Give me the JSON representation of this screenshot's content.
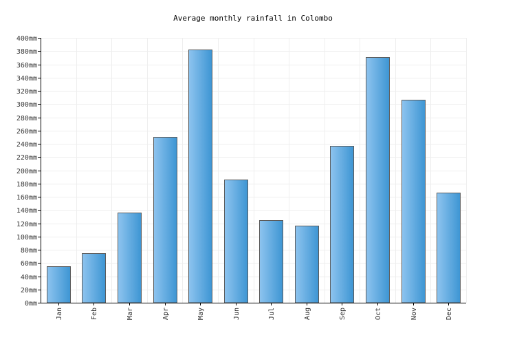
{
  "chart_data": {
    "type": "bar",
    "title": "Average monthly rainfall in Colombo",
    "xlabel": "",
    "ylabel": "",
    "categories": [
      "Jan",
      "Feb",
      "Mar",
      "Apr",
      "May",
      "Jun",
      "Jul",
      "Aug",
      "Sep",
      "Oct",
      "Nov",
      "Dec"
    ],
    "series": [
      {
        "values": [
          55,
          75,
          136,
          250,
          382,
          186,
          125,
          116,
          237,
          371,
          307,
          166
        ]
      }
    ],
    "ylim": [
      0,
      400
    ],
    "ytick_step": 20,
    "y_unit_suffix": "mm",
    "grid": true,
    "legend": "none",
    "colors": {
      "bar_light": "#8ec4ef",
      "bar_dark": "#3d95d3",
      "bar_edge": "#5a5a5a",
      "grid": "#eeeeee",
      "axis": "#000000"
    }
  }
}
